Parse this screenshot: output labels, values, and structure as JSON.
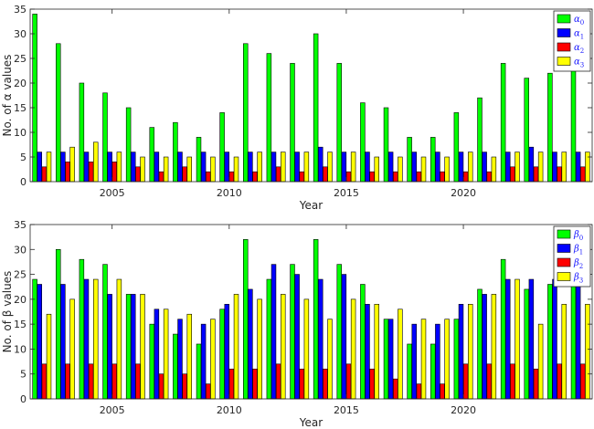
{
  "chart_data": [
    {
      "type": "bar",
      "xlabel": "Year",
      "ylabel": "No. of α values",
      "ylim": [
        0,
        35
      ],
      "yticks": [
        0,
        5,
        10,
        15,
        20,
        25,
        30,
        35
      ],
      "xlim": [
        2001.5,
        2025.5
      ],
      "xticks": [
        2005,
        2010,
        2015,
        2020
      ],
      "x": [
        2002,
        2003,
        2004,
        2005,
        2006,
        2007,
        2008,
        2009,
        2010,
        2011,
        2012,
        2013,
        2014,
        2015,
        2016,
        2017,
        2018,
        2019,
        2020,
        2021,
        2022,
        2023,
        2024,
        2025
      ],
      "legend_position": "top-right",
      "series": [
        {
          "name": "α0",
          "sym": "α",
          "sub": "0",
          "color": "#00ff00",
          "values": [
            34,
            28,
            20,
            18,
            15,
            11,
            12,
            9,
            14,
            28,
            26,
            24,
            30,
            24,
            16,
            15,
            9,
            9,
            14,
            17,
            24,
            21,
            22,
            25
          ]
        },
        {
          "name": "α1",
          "sym": "α",
          "sub": "1",
          "color": "#0000ff",
          "values": [
            6,
            6,
            6,
            6,
            6,
            6,
            6,
            6,
            6,
            6,
            6,
            6,
            7,
            6,
            6,
            6,
            6,
            6,
            6,
            6,
            6,
            7,
            6,
            6
          ]
        },
        {
          "name": "α2",
          "sym": "α",
          "sub": "2",
          "color": "#ff0000",
          "values": [
            3,
            4,
            4,
            4,
            3,
            2,
            3,
            2,
            2,
            2,
            3,
            2,
            3,
            2,
            2,
            2,
            2,
            2,
            2,
            2,
            3,
            3,
            3,
            3
          ]
        },
        {
          "name": "α3",
          "sym": "α",
          "sub": "3",
          "color": "#ffff00",
          "values": [
            6,
            7,
            8,
            6,
            5,
            5,
            5,
            5,
            5,
            6,
            6,
            6,
            6,
            6,
            5,
            5,
            5,
            5,
            6,
            5,
            6,
            6,
            6,
            6
          ]
        }
      ]
    },
    {
      "type": "bar",
      "xlabel": "Year",
      "ylabel": "No. of β values",
      "ylim": [
        0,
        35
      ],
      "yticks": [
        0,
        5,
        10,
        15,
        20,
        25,
        30,
        35
      ],
      "xlim": [
        2001.5,
        2025.5
      ],
      "xticks": [
        2005,
        2010,
        2015,
        2020
      ],
      "x": [
        2002,
        2003,
        2004,
        2005,
        2006,
        2007,
        2008,
        2009,
        2010,
        2011,
        2012,
        2013,
        2014,
        2015,
        2016,
        2017,
        2018,
        2019,
        2020,
        2021,
        2022,
        2023,
        2024,
        2025
      ],
      "legend_position": "top-right",
      "series": [
        {
          "name": "β0",
          "sym": "β",
          "sub": "0",
          "color": "#00ff00",
          "values": [
            24,
            30,
            28,
            27,
            21,
            15,
            13,
            11,
            18,
            32,
            24,
            27,
            32,
            27,
            23,
            16,
            11,
            11,
            16,
            22,
            28,
            22,
            23,
            23
          ]
        },
        {
          "name": "β1",
          "sym": "β",
          "sub": "1",
          "color": "#0000ff",
          "values": [
            23,
            23,
            24,
            21,
            21,
            18,
            16,
            15,
            19,
            22,
            27,
            25,
            24,
            25,
            19,
            16,
            15,
            15,
            19,
            21,
            24,
            24,
            24,
            24
          ]
        },
        {
          "name": "β2",
          "sym": "β",
          "sub": "2",
          "color": "#ff0000",
          "values": [
            7,
            7,
            7,
            7,
            7,
            5,
            5,
            3,
            6,
            6,
            7,
            6,
            6,
            7,
            6,
            4,
            3,
            3,
            7,
            7,
            7,
            6,
            7,
            7
          ]
        },
        {
          "name": "β3",
          "sym": "β",
          "sub": "3",
          "color": "#ffff00",
          "values": [
            17,
            20,
            24,
            24,
            21,
            18,
            17,
            16,
            21,
            20,
            21,
            20,
            16,
            20,
            19,
            18,
            16,
            16,
            19,
            21,
            24,
            15,
            19,
            19
          ]
        }
      ]
    }
  ]
}
